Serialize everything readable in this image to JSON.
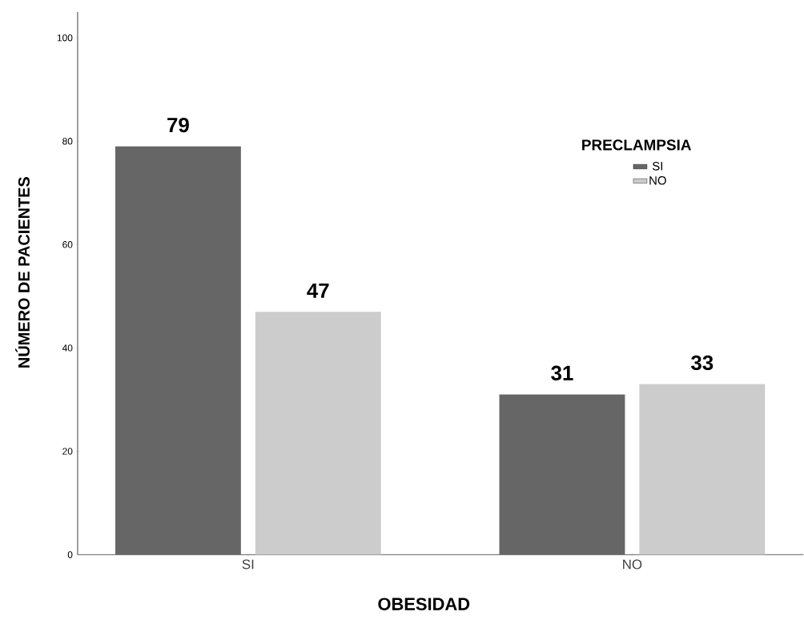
{
  "chart_data": {
    "type": "bar",
    "xlabel": "OBESIDAD",
    "ylabel": "NÚMERO DE PACIENTES",
    "legend_title": "PRECLAMPSIA",
    "categories": [
      "SI",
      "NO"
    ],
    "series": [
      {
        "name": "SI",
        "color": "#666666",
        "values": [
          79,
          31
        ]
      },
      {
        "name": "NO",
        "color": "#cccccc",
        "values": [
          47,
          33
        ]
      }
    ],
    "ylim": [
      0,
      105
    ],
    "yticks": [
      0,
      20,
      40,
      60,
      80,
      100
    ],
    "grid": false,
    "legend": "top right",
    "data_labels": true
  }
}
